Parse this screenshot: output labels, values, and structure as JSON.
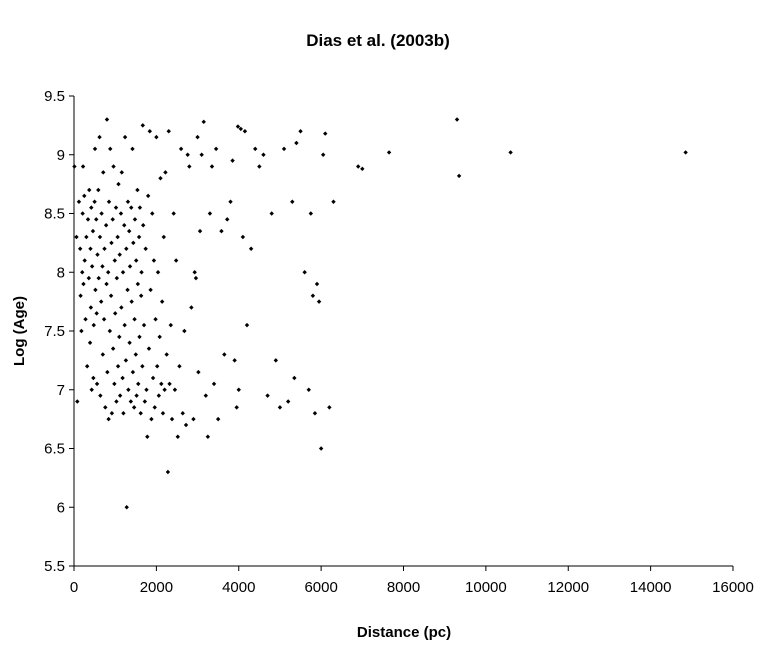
{
  "chart_data": {
    "type": "scatter",
    "title": "Dias et al. (2003b)",
    "xlabel": "Distance (pc)",
    "ylabel": "Log (Age)",
    "xlim": [
      0,
      16000
    ],
    "ylim": [
      5.5,
      9.5
    ],
    "xticks": [
      "0",
      "2000",
      "4000",
      "6000",
      "8000",
      "10000",
      "12000",
      "14000",
      "16000"
    ],
    "yticks": [
      "5.5",
      "6",
      "6.5",
      "7",
      "7.5",
      "8",
      "8.5",
      "9",
      "9.5"
    ],
    "grid": false,
    "legend": "none",
    "marker_color": "#000000",
    "series": [
      {
        "points": [
          [
            10,
            8.9
          ],
          [
            60,
            8.3
          ],
          [
            80,
            6.9
          ],
          [
            120,
            8.6
          ],
          [
            150,
            8.2
          ],
          [
            160,
            7.8
          ],
          [
            180,
            7.5
          ],
          [
            200,
            8.0
          ],
          [
            210,
            8.5
          ],
          [
            220,
            8.9
          ],
          [
            230,
            7.9
          ],
          [
            250,
            8.65
          ],
          [
            260,
            8.1
          ],
          [
            280,
            7.6
          ],
          [
            300,
            8.3
          ],
          [
            320,
            7.2
          ],
          [
            340,
            8.45
          ],
          [
            360,
            7.95
          ],
          [
            370,
            8.7
          ],
          [
            390,
            7.4
          ],
          [
            400,
            8.2
          ],
          [
            410,
            7.7
          ],
          [
            420,
            8.55
          ],
          [
            430,
            7.0
          ],
          [
            440,
            8.05
          ],
          [
            460,
            8.35
          ],
          [
            470,
            7.1
          ],
          [
            480,
            7.55
          ],
          [
            500,
            8.6
          ],
          [
            510,
            9.05
          ],
          [
            520,
            7.85
          ],
          [
            540,
            8.45
          ],
          [
            550,
            7.65
          ],
          [
            560,
            7.05
          ],
          [
            570,
            8.15
          ],
          [
            590,
            8.7
          ],
          [
            600,
            7.95
          ],
          [
            620,
            9.15
          ],
          [
            630,
            8.3
          ],
          [
            640,
            6.95
          ],
          [
            660,
            7.75
          ],
          [
            670,
            8.5
          ],
          [
            690,
            8.05
          ],
          [
            700,
            7.3
          ],
          [
            710,
            8.85
          ],
          [
            730,
            7.6
          ],
          [
            740,
            8.2
          ],
          [
            760,
            6.85
          ],
          [
            780,
            8.4
          ],
          [
            790,
            7.9
          ],
          [
            800,
            9.3
          ],
          [
            810,
            7.15
          ],
          [
            830,
            8.0
          ],
          [
            840,
            6.75
          ],
          [
            850,
            8.6
          ],
          [
            870,
            7.5
          ],
          [
            880,
            9.05
          ],
          [
            900,
            7.8
          ],
          [
            910,
            8.25
          ],
          [
            920,
            6.8
          ],
          [
            940,
            8.45
          ],
          [
            950,
            7.35
          ],
          [
            960,
            8.9
          ],
          [
            980,
            7.05
          ],
          [
            990,
            8.1
          ],
          [
            1000,
            7.65
          ],
          [
            1020,
            8.55
          ],
          [
            1030,
            6.9
          ],
          [
            1040,
            7.95
          ],
          [
            1060,
            8.3
          ],
          [
            1070,
            7.2
          ],
          [
            1080,
            8.75
          ],
          [
            1100,
            7.45
          ],
          [
            1110,
            8.15
          ],
          [
            1120,
            6.95
          ],
          [
            1140,
            8.5
          ],
          [
            1150,
            7.7
          ],
          [
            1160,
            8.85
          ],
          [
            1180,
            7.1
          ],
          [
            1190,
            8.0
          ],
          [
            1200,
            6.8
          ],
          [
            1220,
            8.4
          ],
          [
            1230,
            7.55
          ],
          [
            1240,
            9.15
          ],
          [
            1260,
            7.25
          ],
          [
            1270,
            8.2
          ],
          [
            1280,
            6.0
          ],
          [
            1300,
            7.85
          ],
          [
            1310,
            8.6
          ],
          [
            1320,
            7.0
          ],
          [
            1340,
            8.35
          ],
          [
            1350,
            7.4
          ],
          [
            1360,
            8.05
          ],
          [
            1380,
            6.9
          ],
          [
            1390,
            8.55
          ],
          [
            1400,
            7.75
          ],
          [
            1420,
            9.05
          ],
          [
            1430,
            7.15
          ],
          [
            1440,
            8.25
          ],
          [
            1460,
            6.85
          ],
          [
            1470,
            7.6
          ],
          [
            1480,
            8.45
          ],
          [
            1500,
            7.3
          ],
          [
            1510,
            8.1
          ],
          [
            1520,
            6.95
          ],
          [
            1540,
            8.7
          ],
          [
            1550,
            7.9
          ],
          [
            1560,
            7.05
          ],
          [
            1580,
            8.3
          ],
          [
            1590,
            7.45
          ],
          [
            1600,
            8.55
          ],
          [
            1620,
            6.8
          ],
          [
            1630,
            7.8
          ],
          [
            1640,
            8.0
          ],
          [
            1660,
            7.2
          ],
          [
            1670,
            9.25
          ],
          [
            1680,
            8.4
          ],
          [
            1700,
            7.55
          ],
          [
            1720,
            6.9
          ],
          [
            1740,
            8.2
          ],
          [
            1760,
            7.0
          ],
          [
            1780,
            6.6
          ],
          [
            1800,
            8.65
          ],
          [
            1820,
            7.35
          ],
          [
            1840,
            9.2
          ],
          [
            1860,
            7.85
          ],
          [
            1880,
            6.75
          ],
          [
            1900,
            8.5
          ],
          [
            1920,
            7.1
          ],
          [
            1940,
            8.1
          ],
          [
            1960,
            6.85
          ],
          [
            1980,
            7.6
          ],
          [
            2000,
            9.15
          ],
          [
            2020,
            7.2
          ],
          [
            2040,
            8.0
          ],
          [
            2060,
            6.95
          ],
          [
            2080,
            7.45
          ],
          [
            2100,
            8.8
          ],
          [
            2120,
            7.05
          ],
          [
            2140,
            7.75
          ],
          [
            2160,
            6.8
          ],
          [
            2180,
            8.3
          ],
          [
            2200,
            7.0
          ],
          [
            2220,
            8.85
          ],
          [
            2250,
            7.3
          ],
          [
            2280,
            6.3
          ],
          [
            2300,
            9.2
          ],
          [
            2320,
            7.05
          ],
          [
            2350,
            7.55
          ],
          [
            2380,
            6.75
          ],
          [
            2420,
            8.5
          ],
          [
            2450,
            7.0
          ],
          [
            2480,
            8.1
          ],
          [
            2520,
            6.6
          ],
          [
            2560,
            7.2
          ],
          [
            2600,
            9.05
          ],
          [
            2640,
            6.8
          ],
          [
            2680,
            7.5
          ],
          [
            2720,
            6.7
          ],
          [
            2760,
            9.0
          ],
          [
            2800,
            8.9
          ],
          [
            2850,
            7.7
          ],
          [
            2900,
            6.75
          ],
          [
            2930,
            8.0
          ],
          [
            2960,
            7.95
          ],
          [
            3000,
            9.15
          ],
          [
            3020,
            7.15
          ],
          [
            3060,
            8.35
          ],
          [
            3100,
            9.0
          ],
          [
            3150,
            9.28
          ],
          [
            3200,
            6.95
          ],
          [
            3250,
            6.6
          ],
          [
            3300,
            8.5
          ],
          [
            3350,
            8.9
          ],
          [
            3400,
            7.05
          ],
          [
            3450,
            9.05
          ],
          [
            3500,
            6.75
          ],
          [
            3580,
            8.35
          ],
          [
            3650,
            7.3
          ],
          [
            3720,
            8.45
          ],
          [
            3800,
            8.6
          ],
          [
            3850,
            8.95
          ],
          [
            3900,
            7.25
          ],
          [
            3950,
            6.85
          ],
          [
            3980,
            9.24
          ],
          [
            4000,
            7.0
          ],
          [
            4050,
            9.22
          ],
          [
            4100,
            8.3
          ],
          [
            4150,
            9.2
          ],
          [
            4200,
            7.55
          ],
          [
            4300,
            8.2
          ],
          [
            4400,
            9.05
          ],
          [
            4500,
            8.9
          ],
          [
            4600,
            9.0
          ],
          [
            4700,
            6.95
          ],
          [
            4800,
            8.5
          ],
          [
            4900,
            7.25
          ],
          [
            5000,
            6.85
          ],
          [
            5100,
            9.05
          ],
          [
            5200,
            6.9
          ],
          [
            5300,
            8.6
          ],
          [
            5350,
            7.1
          ],
          [
            5400,
            9.1
          ],
          [
            5500,
            9.2
          ],
          [
            5600,
            8.0
          ],
          [
            5700,
            7.0
          ],
          [
            5750,
            8.5
          ],
          [
            5800,
            7.8
          ],
          [
            5850,
            6.8
          ],
          [
            5900,
            7.9
          ],
          [
            5950,
            7.75
          ],
          [
            6000,
            6.5
          ],
          [
            6050,
            9.0
          ],
          [
            6100,
            9.18
          ],
          [
            6200,
            6.85
          ],
          [
            6300,
            8.6
          ],
          [
            6900,
            8.9
          ],
          [
            7000,
            8.88
          ],
          [
            7650,
            9.02
          ],
          [
            9300,
            9.3
          ],
          [
            9350,
            8.82
          ],
          [
            10600,
            9.02
          ],
          [
            14850,
            9.02
          ]
        ]
      }
    ]
  }
}
